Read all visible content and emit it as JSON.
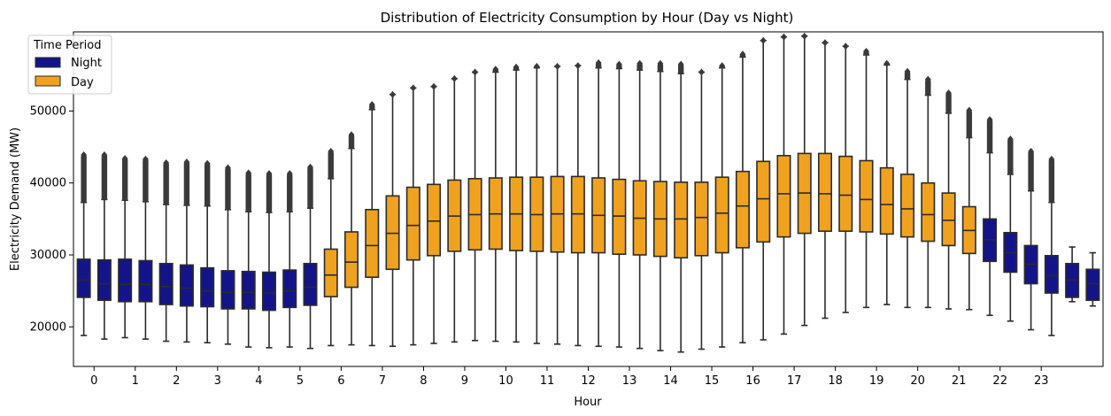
{
  "chart_data": {
    "type": "box",
    "title": "Distribution of Electricity Consumption by Hour (Day vs Night)",
    "xlabel": "Hour",
    "ylabel": "Electricity Demand (MW)",
    "ylim": [
      14500,
      61000
    ],
    "yticks": [
      20000,
      30000,
      40000,
      50000
    ],
    "ytick_labels": [
      "20000",
      "30000",
      "40000",
      "50000"
    ],
    "hours": [
      "0",
      "1",
      "2",
      "3",
      "4",
      "5",
      "6",
      "7",
      "8",
      "9",
      "10",
      "11",
      "12",
      "13",
      "14",
      "15",
      "16",
      "17",
      "18",
      "19",
      "20",
      "21",
      "22",
      "23"
    ],
    "legend": {
      "title": "Time Period",
      "entries": [
        {
          "label": "Night",
          "color": "#14148a"
        },
        {
          "label": "Day",
          "color": "#f0a21e"
        }
      ],
      "placement": "upper-left"
    },
    "colors": {
      "Night": "#14148a",
      "Day": "#f0a21e",
      "line": "#2b2b2b"
    },
    "boxes": [
      {
        "hour": 0,
        "group": "Night",
        "q1": 24100,
        "median": 26500,
        "q3": 29400,
        "wlo": 18800,
        "whi": 37300,
        "fmax": 43900
      },
      {
        "hour": 0,
        "group": "Night",
        "q1": 23700,
        "median": 26000,
        "q3": 29300,
        "wlo": 18300,
        "whi": 37700,
        "fmax": 43900
      },
      {
        "hour": 1,
        "group": "Night",
        "q1": 23500,
        "median": 25900,
        "q3": 29400,
        "wlo": 18500,
        "whi": 37600,
        "fmax": 43400
      },
      {
        "hour": 1,
        "group": "Night",
        "q1": 23500,
        "median": 25900,
        "q3": 29200,
        "wlo": 18300,
        "whi": 37400,
        "fmax": 43300
      },
      {
        "hour": 2,
        "group": "Night",
        "q1": 23100,
        "median": 25600,
        "q3": 28800,
        "wlo": 18000,
        "whi": 37000,
        "fmax": 42800
      },
      {
        "hour": 2,
        "group": "Night",
        "q1": 22900,
        "median": 25400,
        "q3": 28600,
        "wlo": 17900,
        "whi": 36900,
        "fmax": 42900
      },
      {
        "hour": 3,
        "group": "Night",
        "q1": 22800,
        "median": 25000,
        "q3": 28200,
        "wlo": 17800,
        "whi": 36800,
        "fmax": 42700
      },
      {
        "hour": 3,
        "group": "Night",
        "q1": 22500,
        "median": 24800,
        "q3": 27800,
        "wlo": 17600,
        "whi": 36300,
        "fmax": 42100
      },
      {
        "hour": 4,
        "group": "Night",
        "q1": 22500,
        "median": 24800,
        "q3": 27700,
        "wlo": 17200,
        "whi": 36000,
        "fmax": 41400
      },
      {
        "hour": 4,
        "group": "Night",
        "q1": 22300,
        "median": 24700,
        "q3": 27600,
        "wlo": 17100,
        "whi": 35900,
        "fmax": 41300
      },
      {
        "hour": 5,
        "group": "Night",
        "q1": 22700,
        "median": 25000,
        "q3": 27900,
        "wlo": 17200,
        "whi": 36000,
        "fmax": 41300
      },
      {
        "hour": 5,
        "group": "Night",
        "q1": 23000,
        "median": 25500,
        "q3": 28800,
        "wlo": 17000,
        "whi": 36500,
        "fmax": 42200
      },
      {
        "hour": 6,
        "group": "Day",
        "q1": 24200,
        "median": 27200,
        "q3": 30800,
        "wlo": 17400,
        "whi": 40600,
        "fmax": 44400
      },
      {
        "hour": 6,
        "group": "Day",
        "q1": 25500,
        "median": 29000,
        "q3": 33200,
        "wlo": 17500,
        "whi": 44800,
        "fmax": 46700
      },
      {
        "hour": 7,
        "group": "Day",
        "q1": 26900,
        "median": 31300,
        "q3": 36300,
        "wlo": 17400,
        "whi": 50200,
        "fmax": 50900
      },
      {
        "hour": 7,
        "group": "Day",
        "q1": 28000,
        "median": 33000,
        "q3": 38200,
        "wlo": 17300,
        "whi": 52300,
        "fmax": 52300
      },
      {
        "hour": 8,
        "group": "Day",
        "q1": 29300,
        "median": 34100,
        "q3": 39400,
        "wlo": 17500,
        "whi": 53200,
        "fmax": 53200
      },
      {
        "hour": 8,
        "group": "Day",
        "q1": 29900,
        "median": 34700,
        "q3": 39800,
        "wlo": 17700,
        "whi": 53400,
        "fmax": 53400
      },
      {
        "hour": 9,
        "group": "Day",
        "q1": 30500,
        "median": 35400,
        "q3": 40400,
        "wlo": 17900,
        "whi": 54500,
        "fmax": 54500
      },
      {
        "hour": 9,
        "group": "Day",
        "q1": 30700,
        "median": 35600,
        "q3": 40600,
        "wlo": 18100,
        "whi": 55400,
        "fmax": 55400
      },
      {
        "hour": 10,
        "group": "Day",
        "q1": 30800,
        "median": 35700,
        "q3": 40700,
        "wlo": 18000,
        "whi": 55400,
        "fmax": 55800
      },
      {
        "hour": 10,
        "group": "Day",
        "q1": 30600,
        "median": 35700,
        "q3": 40800,
        "wlo": 17900,
        "whi": 55700,
        "fmax": 56100
      },
      {
        "hour": 11,
        "group": "Day",
        "q1": 30500,
        "median": 35600,
        "q3": 40800,
        "wlo": 17700,
        "whi": 56000,
        "fmax": 56200
      },
      {
        "hour": 11,
        "group": "Day",
        "q1": 30400,
        "median": 35700,
        "q3": 40900,
        "wlo": 17600,
        "whi": 56200,
        "fmax": 56200
      },
      {
        "hour": 12,
        "group": "Day",
        "q1": 30300,
        "median": 35700,
        "q3": 40900,
        "wlo": 17400,
        "whi": 56300,
        "fmax": 56300
      },
      {
        "hour": 12,
        "group": "Day",
        "q1": 30300,
        "median": 35500,
        "q3": 40700,
        "wlo": 17300,
        "whi": 56000,
        "fmax": 56700
      },
      {
        "hour": 13,
        "group": "Day",
        "q1": 30100,
        "median": 35400,
        "q3": 40500,
        "wlo": 17200,
        "whi": 55900,
        "fmax": 56500
      },
      {
        "hour": 13,
        "group": "Day",
        "q1": 30000,
        "median": 35100,
        "q3": 40300,
        "wlo": 17000,
        "whi": 55700,
        "fmax": 56600
      },
      {
        "hour": 14,
        "group": "Day",
        "q1": 29800,
        "median": 35000,
        "q3": 40200,
        "wlo": 16700,
        "whi": 55500,
        "fmax": 56600
      },
      {
        "hour": 14,
        "group": "Day",
        "q1": 29600,
        "median": 35000,
        "q3": 40100,
        "wlo": 16500,
        "whi": 55200,
        "fmax": 56500
      },
      {
        "hour": 15,
        "group": "Day",
        "q1": 29900,
        "median": 35200,
        "q3": 40100,
        "wlo": 16900,
        "whi": 55400,
        "fmax": 55400
      },
      {
        "hour": 15,
        "group": "Day",
        "q1": 30300,
        "median": 35800,
        "q3": 40800,
        "wlo": 17200,
        "whi": 56000,
        "fmax": 56300
      },
      {
        "hour": 16,
        "group": "Day",
        "q1": 31000,
        "median": 36800,
        "q3": 41600,
        "wlo": 17800,
        "whi": 57500,
        "fmax": 57900
      },
      {
        "hour": 16,
        "group": "Day",
        "q1": 31800,
        "median": 37800,
        "q3": 43000,
        "wlo": 18200,
        "whi": 59800,
        "fmax": 59800
      },
      {
        "hour": 17,
        "group": "Day",
        "q1": 32500,
        "median": 38500,
        "q3": 43800,
        "wlo": 19000,
        "whi": 60300,
        "fmax": 60300
      },
      {
        "hour": 17,
        "group": "Day",
        "q1": 33000,
        "median": 38600,
        "q3": 44100,
        "wlo": 20200,
        "whi": 60400,
        "fmax": 60400
      },
      {
        "hour": 18,
        "group": "Day",
        "q1": 33300,
        "median": 38500,
        "q3": 44100,
        "wlo": 21200,
        "whi": 59500,
        "fmax": 59500
      },
      {
        "hour": 18,
        "group": "Day",
        "q1": 33300,
        "median": 38300,
        "q3": 43700,
        "wlo": 22000,
        "whi": 59000,
        "fmax": 59000
      },
      {
        "hour": 19,
        "group": "Day",
        "q1": 33200,
        "median": 37700,
        "q3": 43100,
        "wlo": 22700,
        "whi": 57800,
        "fmax": 58300
      },
      {
        "hour": 19,
        "group": "Day",
        "q1": 32900,
        "median": 37000,
        "q3": 42100,
        "wlo": 23100,
        "whi": 56400,
        "fmax": 56600
      },
      {
        "hour": 20,
        "group": "Day",
        "q1": 32500,
        "median": 36400,
        "q3": 41200,
        "wlo": 22700,
        "whi": 54400,
        "fmax": 55500
      },
      {
        "hour": 20,
        "group": "Day",
        "q1": 31900,
        "median": 35600,
        "q3": 40000,
        "wlo": 22700,
        "whi": 52200,
        "fmax": 54400
      },
      {
        "hour": 21,
        "group": "Day",
        "q1": 31300,
        "median": 34800,
        "q3": 38600,
        "wlo": 22500,
        "whi": 49700,
        "fmax": 52500
      },
      {
        "hour": 21,
        "group": "Day",
        "q1": 30200,
        "median": 33400,
        "q3": 36700,
        "wlo": 22400,
        "whi": 46300,
        "fmax": 50100
      },
      {
        "hour": 21,
        "group": "Night",
        "q1": 29100,
        "median": 32100,
        "q3": 35000,
        "wlo": 21600,
        "whi": 44200,
        "fmax": 48800
      },
      {
        "hour": 22,
        "group": "Night",
        "q1": 27600,
        "median": 30300,
        "q3": 33100,
        "wlo": 20800,
        "whi": 41200,
        "fmax": 46100
      },
      {
        "hour": 22,
        "group": "Night",
        "q1": 26000,
        "median": 28700,
        "q3": 31300,
        "wlo": 19600,
        "whi": 38900,
        "fmax": 44400
      },
      {
        "hour": 23,
        "group": "Night",
        "q1": 24700,
        "median": 27100,
        "q3": 29900,
        "wlo": 18800,
        "whi": 37300,
        "fmax": 43300
      },
      {
        "hour": 23,
        "group": "Night",
        "q1": 24100,
        "median": 26500,
        "q3": 28800,
        "wlo": 23500,
        "whi": 31100,
        "fmax": null
      },
      {
        "hour": 23,
        "group": "Night",
        "q1": 23700,
        "median": 26000,
        "q3": 28000,
        "wlo": 22900,
        "whi": 30300,
        "fmax": null
      }
    ]
  }
}
